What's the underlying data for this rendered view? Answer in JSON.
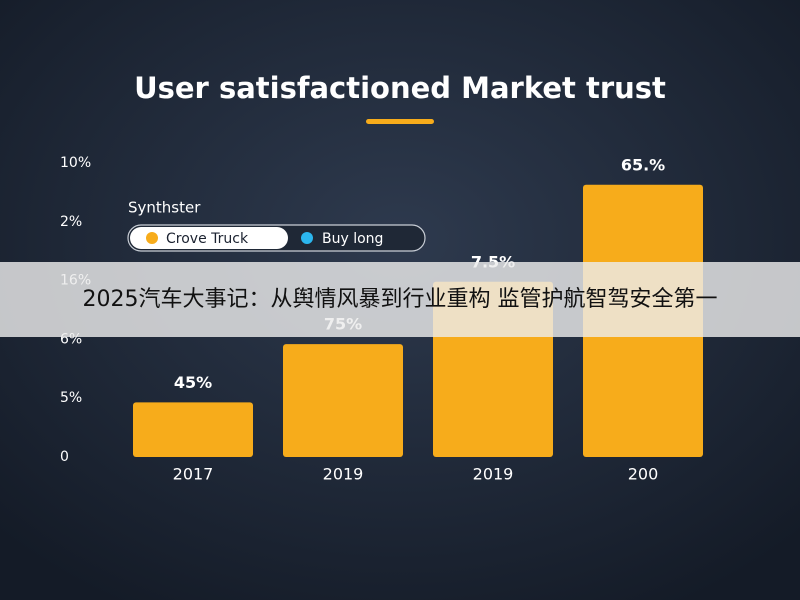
{
  "chart_data": {
    "type": "bar",
    "title": "User satisfactioned Market trust",
    "categories": [
      "2017",
      "2019",
      "2019",
      "200"
    ],
    "values": [
      0.93,
      1.92,
      2.98,
      4.63
    ],
    "value_labels": [
      "45%",
      "75%",
      "7.5%",
      "65.%"
    ],
    "color": "#f7ac1b",
    "ylim": [
      0,
      5
    ],
    "yticks": [
      {
        "value": 0,
        "label": "0"
      },
      {
        "value": 1,
        "label": "5%"
      },
      {
        "value": 2,
        "label": "6%"
      },
      {
        "value": 3,
        "label": "16%"
      },
      {
        "value": 4,
        "label": "2%"
      },
      {
        "value": 5,
        "label": "10%"
      }
    ],
    "grid": false,
    "legend": {
      "title": "Synthster",
      "entries": [
        {
          "name": "Crove Truck",
          "color": "#f7ac1b"
        },
        {
          "name": "Buy long",
          "color": "#2bb6ee"
        }
      ]
    }
  },
  "banner": "2025汽车大事记：从舆情风暴到行业重构 监管护航智驾安全第一"
}
